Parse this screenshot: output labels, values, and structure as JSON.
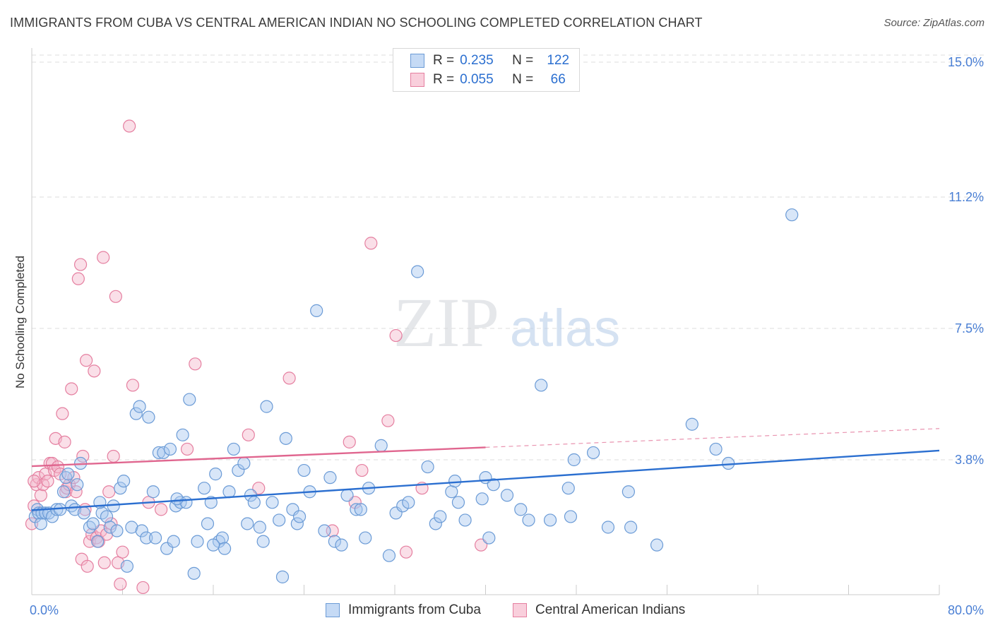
{
  "title": "IMMIGRANTS FROM CUBA VS CENTRAL AMERICAN INDIAN NO SCHOOLING COMPLETED CORRELATION CHART",
  "source": "Source: ZipAtlas.com",
  "watermark": {
    "zip": "ZIP",
    "atlas": "atlas"
  },
  "legend": {
    "rows": [
      {
        "r_label": "R =",
        "r_value": "0.235",
        "n_label": "N =",
        "n_value": "122"
      },
      {
        "r_label": "R =",
        "r_value": "0.055",
        "n_label": "N =",
        "n_value": "66"
      }
    ]
  },
  "bottom_legend": {
    "series1": "Immigrants from Cuba",
    "series2": "Central American Indians"
  },
  "chart_data": {
    "type": "scatter",
    "title": "IMMIGRANTS FROM CUBA VS CENTRAL AMERICAN INDIAN NO SCHOOLING COMPLETED CORRELATION CHART",
    "xlabel": "",
    "ylabel": "No Schooling Completed",
    "xlim": [
      0,
      80
    ],
    "ylim": [
      0,
      15.2
    ],
    "x_tick_labels": [
      "0.0%",
      "80.0%"
    ],
    "y_ticks": [
      3.8,
      7.5,
      11.2,
      15.0
    ],
    "y_tick_labels": [
      "3.8%",
      "7.5%",
      "11.2%",
      "15.0%"
    ],
    "grid": true,
    "colors": {
      "blue_fill": "#a9c8f0",
      "blue_stroke": "#6b9bd6",
      "blue_line": "#2b6fd0",
      "pink_fill": "#f5b8cc",
      "pink_stroke": "#e57fa0",
      "pink_line": "#e0668f",
      "grid": "#dddddd",
      "axis_text": "#4a7fd4"
    },
    "series": [
      {
        "name": "Immigrants from Cuba",
        "color": "blue",
        "trend": {
          "x0": 0,
          "y0": 2.38,
          "x1": 80,
          "y1": 4.06,
          "x_end_solid": 80
        },
        "points": [
          [
            0.3,
            2.2
          ],
          [
            0.5,
            2.4
          ],
          [
            0.6,
            2.3
          ],
          [
            0.8,
            2.0
          ],
          [
            0.9,
            2.3
          ],
          [
            1.2,
            2.3
          ],
          [
            1.5,
            2.3
          ],
          [
            1.8,
            2.2
          ],
          [
            2.2,
            2.4
          ],
          [
            2.5,
            2.4
          ],
          [
            2.8,
            2.9
          ],
          [
            3.0,
            3.3
          ],
          [
            3.2,
            3.4
          ],
          [
            3.5,
            2.5
          ],
          [
            3.8,
            2.4
          ],
          [
            4.0,
            3.1
          ],
          [
            4.3,
            3.7
          ],
          [
            4.6,
            2.3
          ],
          [
            5.1,
            1.9
          ],
          [
            5.4,
            2.0
          ],
          [
            5.8,
            1.5
          ],
          [
            6.2,
            2.3
          ],
          [
            6.6,
            2.2
          ],
          [
            6.9,
            1.9
          ],
          [
            7.2,
            2.5
          ],
          [
            7.5,
            1.8
          ],
          [
            7.8,
            3.0
          ],
          [
            8.1,
            3.2
          ],
          [
            8.4,
            0.8
          ],
          [
            8.8,
            1.9
          ],
          [
            9.2,
            5.1
          ],
          [
            9.5,
            5.3
          ],
          [
            9.7,
            1.8
          ],
          [
            10.1,
            1.6
          ],
          [
            10.3,
            5.0
          ],
          [
            10.7,
            2.9
          ],
          [
            10.9,
            1.6
          ],
          [
            11.2,
            4.0
          ],
          [
            11.6,
            4.0
          ],
          [
            11.9,
            1.3
          ],
          [
            12.2,
            4.1
          ],
          [
            12.5,
            1.5
          ],
          [
            12.7,
            2.5
          ],
          [
            13.1,
            2.6
          ],
          [
            13.3,
            4.5
          ],
          [
            13.6,
            2.6
          ],
          [
            13.9,
            5.5
          ],
          [
            14.3,
            0.6
          ],
          [
            14.6,
            1.5
          ],
          [
            15.2,
            3.0
          ],
          [
            15.5,
            2.0
          ],
          [
            15.8,
            2.6
          ],
          [
            16.2,
            3.4
          ],
          [
            16.5,
            1.5
          ],
          [
            16.8,
            1.6
          ],
          [
            17.0,
            1.3
          ],
          [
            17.4,
            2.9
          ],
          [
            17.8,
            4.1
          ],
          [
            18.2,
            3.5
          ],
          [
            18.7,
            3.7
          ],
          [
            19.0,
            2.0
          ],
          [
            19.3,
            2.8
          ],
          [
            19.6,
            2.6
          ],
          [
            20.1,
            1.9
          ],
          [
            20.4,
            1.5
          ],
          [
            20.7,
            5.3
          ],
          [
            21.2,
            2.6
          ],
          [
            21.8,
            2.1
          ],
          [
            22.1,
            0.5
          ],
          [
            22.4,
            4.4
          ],
          [
            23.0,
            2.4
          ],
          [
            23.4,
            2.0
          ],
          [
            23.6,
            2.2
          ],
          [
            24.0,
            3.5
          ],
          [
            24.5,
            2.9
          ],
          [
            25.1,
            8.0
          ],
          [
            25.8,
            1.8
          ],
          [
            26.3,
            3.3
          ],
          [
            26.7,
            1.5
          ],
          [
            27.3,
            1.4
          ],
          [
            27.8,
            2.8
          ],
          [
            28.6,
            2.4
          ],
          [
            29.0,
            2.4
          ],
          [
            29.4,
            1.6
          ],
          [
            29.7,
            3.0
          ],
          [
            30.8,
            4.2
          ],
          [
            31.5,
            1.1
          ],
          [
            32.1,
            2.3
          ],
          [
            32.7,
            2.5
          ],
          [
            33.2,
            2.6
          ],
          [
            34.0,
            9.1
          ],
          [
            34.9,
            3.6
          ],
          [
            35.6,
            2.0
          ],
          [
            36.0,
            2.2
          ],
          [
            37.0,
            2.9
          ],
          [
            37.3,
            3.2
          ],
          [
            37.6,
            2.6
          ],
          [
            38.2,
            2.1
          ],
          [
            39.7,
            2.7
          ],
          [
            40.0,
            3.3
          ],
          [
            40.7,
            3.1
          ],
          [
            41.9,
            2.8
          ],
          [
            43.1,
            2.4
          ],
          [
            43.8,
            2.1
          ],
          [
            44.9,
            5.9
          ],
          [
            45.7,
            2.1
          ],
          [
            47.3,
            3.0
          ],
          [
            47.5,
            2.2
          ],
          [
            47.8,
            3.8
          ],
          [
            49.5,
            4.0
          ],
          [
            50.8,
            1.9
          ],
          [
            52.6,
            2.9
          ],
          [
            52.8,
            1.9
          ],
          [
            55.1,
            1.4
          ],
          [
            58.2,
            4.8
          ],
          [
            60.3,
            4.1
          ],
          [
            61.4,
            3.7
          ],
          [
            67.0,
            10.7
          ],
          [
            12.8,
            2.7
          ],
          [
            40.3,
            1.6
          ],
          [
            6.0,
            2.6
          ],
          [
            16.0,
            1.4
          ]
        ]
      },
      {
        "name": "Central American Indians",
        "color": "pink",
        "trend": {
          "x0": 0,
          "y0": 3.62,
          "x1": 80,
          "y1": 4.68,
          "x_end_solid": 40
        },
        "points": [
          [
            0.0,
            2.0
          ],
          [
            0.2,
            2.5
          ],
          [
            0.4,
            3.1
          ],
          [
            0.6,
            3.3
          ],
          [
            0.8,
            2.8
          ],
          [
            1.0,
            3.1
          ],
          [
            1.2,
            3.4
          ],
          [
            1.4,
            3.2
          ],
          [
            1.6,
            3.7
          ],
          [
            1.8,
            3.7
          ],
          [
            2.0,
            3.5
          ],
          [
            2.1,
            4.4
          ],
          [
            2.3,
            3.6
          ],
          [
            2.5,
            3.4
          ],
          [
            2.7,
            5.1
          ],
          [
            2.9,
            4.3
          ],
          [
            3.0,
            2.9
          ],
          [
            3.1,
            3.0
          ],
          [
            3.3,
            3.1
          ],
          [
            3.5,
            5.8
          ],
          [
            3.7,
            3.3
          ],
          [
            3.9,
            2.9
          ],
          [
            4.1,
            8.9
          ],
          [
            4.3,
            9.3
          ],
          [
            4.4,
            1.0
          ],
          [
            4.5,
            3.9
          ],
          [
            4.7,
            2.4
          ],
          [
            4.8,
            6.6
          ],
          [
            4.9,
            0.8
          ],
          [
            5.1,
            1.5
          ],
          [
            5.3,
            1.7
          ],
          [
            5.5,
            6.3
          ],
          [
            5.7,
            1.6
          ],
          [
            5.9,
            1.5
          ],
          [
            6.1,
            1.8
          ],
          [
            6.3,
            9.5
          ],
          [
            6.4,
            0.9
          ],
          [
            6.6,
            1.7
          ],
          [
            6.8,
            2.9
          ],
          [
            7.0,
            2.0
          ],
          [
            7.2,
            3.9
          ],
          [
            7.4,
            8.4
          ],
          [
            7.6,
            0.9
          ],
          [
            7.8,
            0.3
          ],
          [
            8.0,
            1.2
          ],
          [
            8.6,
            13.2
          ],
          [
            8.9,
            5.9
          ],
          [
            9.8,
            0.2
          ],
          [
            10.3,
            2.6
          ],
          [
            11.4,
            2.4
          ],
          [
            13.7,
            4.1
          ],
          [
            14.4,
            6.5
          ],
          [
            19.1,
            4.5
          ],
          [
            20.0,
            3.0
          ],
          [
            22.7,
            6.1
          ],
          [
            26.5,
            1.8
          ],
          [
            28.0,
            4.3
          ],
          [
            28.5,
            2.6
          ],
          [
            29.1,
            3.5
          ],
          [
            29.9,
            9.9
          ],
          [
            31.4,
            4.9
          ],
          [
            32.1,
            7.3
          ],
          [
            33.0,
            1.2
          ],
          [
            34.4,
            3.0
          ],
          [
            39.6,
            1.4
          ],
          [
            0.2,
            3.2
          ]
        ]
      }
    ]
  }
}
